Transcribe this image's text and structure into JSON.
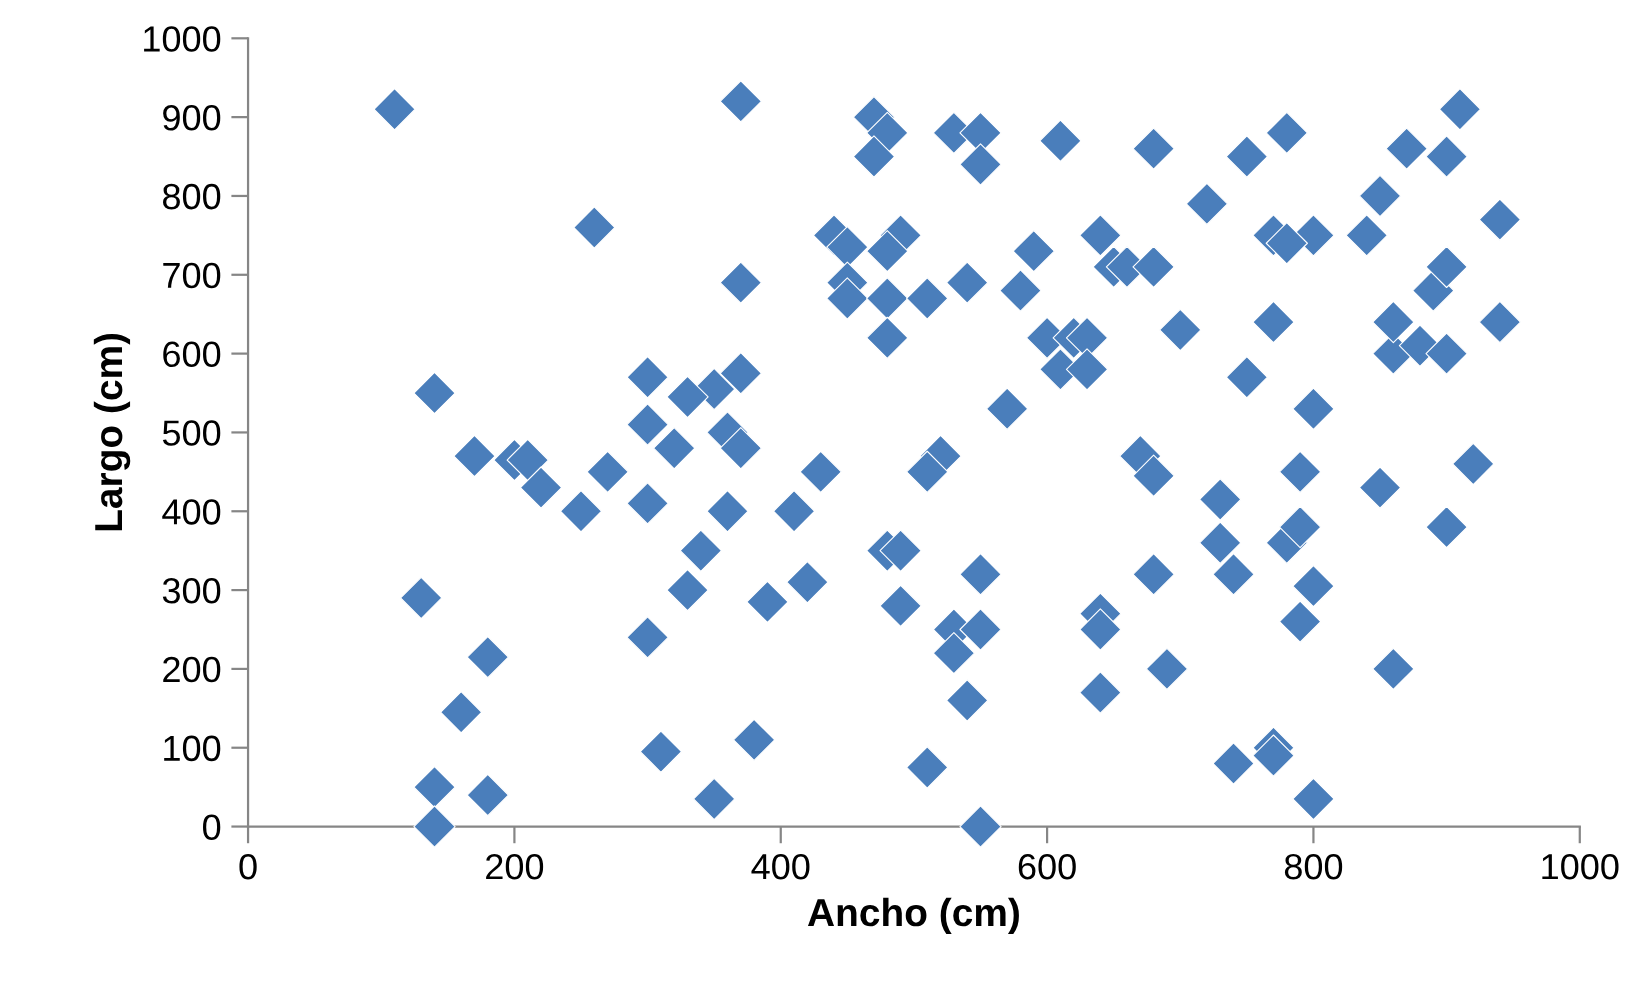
{
  "chart_data": {
    "type": "scatter",
    "xlabel": "Ancho (cm)",
    "ylabel": "Largo (cm)",
    "marker": "diamond",
    "grid": false,
    "xlim": [
      0,
      1000
    ],
    "xticks": [
      0,
      200,
      400,
      600,
      800,
      1000
    ],
    "ylim": [
      0,
      1000
    ],
    "yticks": [
      0,
      100,
      200,
      300,
      400,
      500,
      600,
      700,
      800,
      900,
      1000
    ],
    "series": [
      {
        "color": "#4a7ebb",
        "x": [
          110,
          370,
          260,
          370,
          140,
          300,
          350,
          370,
          360,
          370,
          330,
          300,
          200,
          210,
          220,
          170,
          250,
          270,
          300,
          320,
          360,
          410,
          430,
          340,
          390,
          330,
          420,
          300,
          130,
          180,
          160,
          140,
          180,
          140,
          310,
          380,
          350,
          470,
          480,
          470,
          530,
          550,
          550,
          610,
          440,
          450,
          490,
          480,
          450,
          450,
          480,
          540,
          510,
          480,
          590,
          580,
          640,
          650,
          660,
          680,
          600,
          610,
          620,
          630,
          630,
          570,
          520,
          510,
          480,
          490,
          490,
          530,
          530,
          550,
          550,
          540,
          510,
          550,
          640,
          640,
          640,
          680,
          720,
          750,
          780,
          870,
          910,
          900,
          850,
          840,
          800,
          770,
          780,
          770,
          700,
          750,
          670,
          680,
          730,
          730,
          740,
          680,
          690,
          740,
          770,
          770,
          780,
          790,
          790,
          790,
          800,
          800,
          800,
          850,
          860,
          860,
          860,
          880,
          890,
          900,
          900,
          940,
          940,
          920,
          900
        ],
        "values": [
          910,
          920,
          760,
          690,
          550,
          570,
          555,
          575,
          500,
          480,
          545,
          510,
          465,
          465,
          430,
          470,
          400,
          450,
          410,
          480,
          400,
          400,
          450,
          350,
          285,
          300,
          310,
          240,
          290,
          215,
          145,
          50,
          40,
          0,
          95,
          110,
          35,
          900,
          880,
          850,
          880,
          880,
          840,
          870,
          750,
          735,
          750,
          730,
          690,
          670,
          670,
          690,
          670,
          620,
          730,
          680,
          750,
          710,
          710,
          710,
          620,
          580,
          620,
          620,
          580,
          530,
          470,
          450,
          350,
          350,
          280,
          250,
          220,
          320,
          250,
          160,
          75,
          0,
          270,
          250,
          170,
          860,
          790,
          850,
          880,
          860,
          910,
          850,
          800,
          750,
          750,
          750,
          740,
          640,
          630,
          570,
          470,
          445,
          415,
          360,
          320,
          320,
          200,
          80,
          100,
          90,
          360,
          380,
          450,
          260,
          305,
          530,
          35,
          430,
          200,
          600,
          640,
          610,
          680,
          710,
          600,
          770,
          640,
          460,
          380
        ]
      }
    ]
  }
}
